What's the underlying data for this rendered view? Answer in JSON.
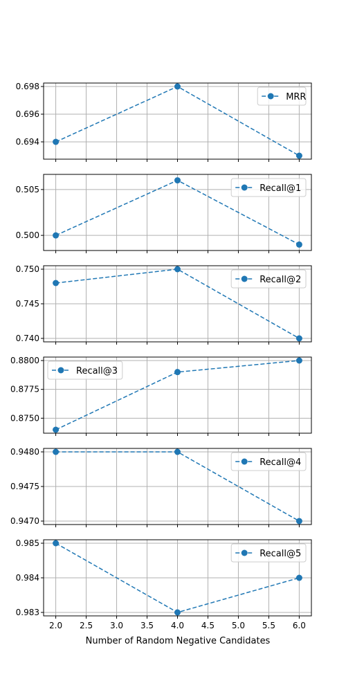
{
  "chart_data": {
    "type": "line",
    "xlabel": "Number of Random Negative Candidates",
    "x": [
      2,
      4,
      6
    ],
    "xlim": [
      1.8,
      6.2
    ],
    "xticks": [
      2.0,
      2.5,
      3.0,
      3.5,
      4.0,
      4.5,
      5.0,
      5.5,
      6.0
    ],
    "xtick_labels": [
      "2.0",
      "2.5",
      "3.0",
      "3.5",
      "4.0",
      "4.5",
      "5.0",
      "5.5",
      "6.0"
    ],
    "grid": true,
    "color": "#1f77b4",
    "line_style": "dashed",
    "marker": "circle",
    "panels": [
      {
        "series": {
          "name": "MRR",
          "values": [
            0.694,
            0.698,
            0.693
          ]
        },
        "ylim": [
          0.69275,
          0.69825
        ],
        "yticks": [
          0.694,
          0.696,
          0.698
        ],
        "ytick_labels": [
          "0.694",
          "0.696",
          "0.698"
        ],
        "legend": "upper-right"
      },
      {
        "series": {
          "name": "Recall@1",
          "values": [
            0.5,
            0.506,
            0.499
          ]
        },
        "ylim": [
          0.49835,
          0.50665
        ],
        "yticks": [
          0.5,
          0.505
        ],
        "ytick_labels": [
          "0.500",
          "0.505"
        ],
        "legend": "upper-right"
      },
      {
        "series": {
          "name": "Recall@2",
          "values": [
            0.748,
            0.75,
            0.74
          ]
        },
        "ylim": [
          0.7395,
          0.7505
        ],
        "yticks": [
          0.74,
          0.745,
          0.75
        ],
        "ytick_labels": [
          "0.740",
          "0.745",
          "0.750"
        ],
        "legend": "upper-right"
      },
      {
        "series": {
          "name": "Recall@3",
          "values": [
            0.874,
            0.879,
            0.88
          ]
        },
        "ylim": [
          0.8737,
          0.8803
        ],
        "yticks": [
          0.875,
          0.8775,
          0.88
        ],
        "ytick_labels": [
          "0.8750",
          "0.8775",
          "0.8800"
        ],
        "legend": "upper-left"
      },
      {
        "series": {
          "name": "Recall@4",
          "values": [
            0.948,
            0.948,
            0.947
          ]
        },
        "ylim": [
          0.94695,
          0.94805
        ],
        "yticks": [
          0.947,
          0.9475,
          0.948
        ],
        "ytick_labels": [
          "0.9470",
          "0.9475",
          "0.9480"
        ],
        "legend": "upper-right"
      },
      {
        "series": {
          "name": "Recall@5",
          "values": [
            0.985,
            0.983,
            0.984
          ]
        },
        "ylim": [
          0.9829,
          0.9851
        ],
        "yticks": [
          0.983,
          0.984,
          0.985
        ],
        "ytick_labels": [
          "0.983",
          "0.984",
          "0.985"
        ],
        "legend": "upper-right"
      }
    ]
  }
}
